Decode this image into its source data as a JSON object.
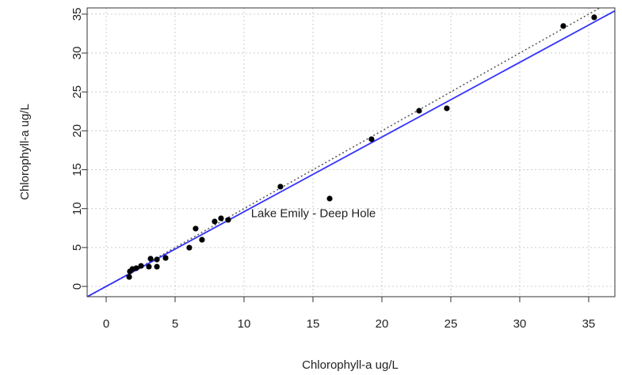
{
  "chart_data": {
    "type": "scatter",
    "x_label": "Chlorophyll-a ug/L",
    "y_label": "Chlorophyll-a ug/L",
    "annotation": "Lake Emily - Deep Hole",
    "x": [
      1.67,
      1.72,
      1.9,
      2.18,
      2.53,
      3.1,
      3.22,
      3.68,
      3.68,
      4.31,
      6.03,
      6.49,
      6.95,
      7.87,
      8.33,
      8.85,
      12.64,
      16.21,
      19.25,
      22.7,
      24.71,
      33.16,
      35.4
    ],
    "values": [
      1.22,
      1.93,
      2.24,
      2.34,
      2.64,
      2.54,
      3.56,
      3.46,
      2.54,
      3.66,
      4.98,
      7.43,
      6.0,
      8.34,
      8.75,
      8.55,
      12.82,
      11.29,
      18.92,
      22.58,
      22.89,
      33.47,
      34.59
    ],
    "color": "#000000",
    "lines": [
      {
        "slope": 1,
        "intercept": 0,
        "color": "#555555",
        "dashed": true
      },
      {
        "slope": 0.96,
        "intercept": 0,
        "color": "#3333ff",
        "dashed": false
      }
    ],
    "xlim": [
      -1.38,
      36.9
    ],
    "ylim": [
      -1.32,
      35.8
    ],
    "xticks": [
      0,
      5,
      10,
      15,
      20,
      25,
      30,
      35
    ],
    "yticks": [
      0,
      5,
      10,
      15,
      20,
      25,
      30,
      35
    ],
    "grid": true
  }
}
